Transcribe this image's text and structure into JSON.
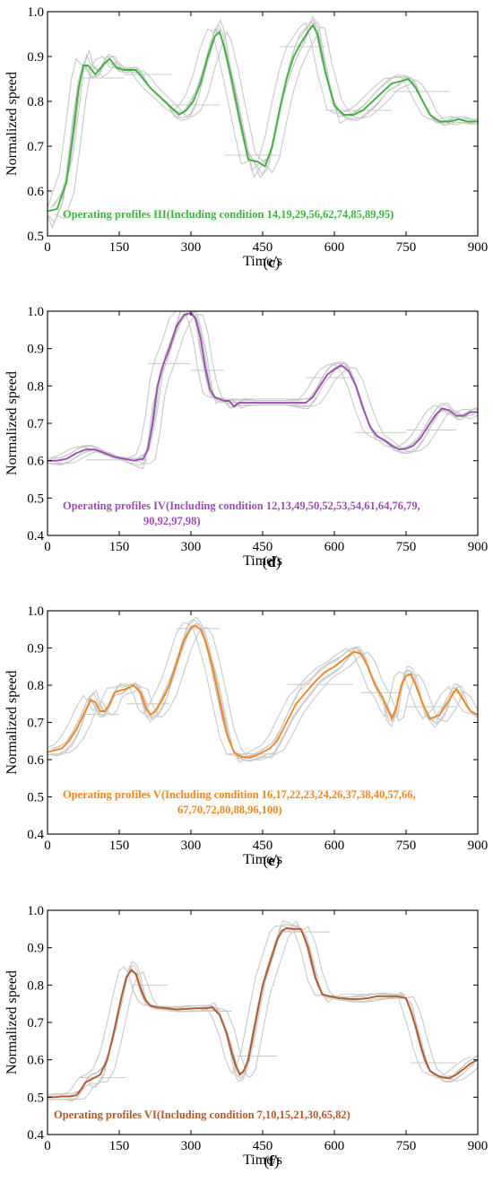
{
  "figure": {
    "panels": [
      {
        "id": "c",
        "letter": "(c)",
        "letter_bold": "c",
        "ylabel": "Normalized speed",
        "xlabel": "Time/s",
        "legend": [
          "Operating profiles III(Including condition 14,19,29,56,62,74,85,89,95)"
        ],
        "color": "#3cb43c"
      },
      {
        "id": "d",
        "letter": "(d)",
        "letter_bold": "d",
        "ylabel": "Normalized speed",
        "xlabel": "Time/s",
        "legend": [
          "Operating profiles IV(Including condition 12,13,49,50,52,53,54,61,64,76,79,",
          "90,92,97,98)"
        ],
        "color": "#9b4fb0"
      },
      {
        "id": "e",
        "letter": "(e)",
        "letter_bold": "e",
        "ylabel": "Normalized speed",
        "xlabel": "Time/s",
        "legend": [
          "Operating profiles V(Including condition 16,17,22,23,24,26,37,38,40,57,66,",
          "67,70,72,80,88,96,100)"
        ],
        "color": "#f2851e"
      },
      {
        "id": "f",
        "letter": "(f)",
        "letter_bold": "f",
        "ylabel": "Normalized speed",
        "xlabel": "Time/s",
        "legend": [
          "Operating profiles VI(Including condition 7,10,15,21,30,65,82)"
        ],
        "color": "#b5582a"
      }
    ]
  },
  "chart_data": [
    {
      "type": "line",
      "ylabel": "Normalized speed",
      "xlabel": "Time/s",
      "xlim": [
        0,
        900
      ],
      "ylim": [
        0.5,
        1.0
      ],
      "xticks": [
        "0",
        "150",
        "300",
        "450",
        "600",
        "750",
        "900"
      ],
      "yticks": [
        "0.5",
        "0.6",
        "0.7",
        "0.8",
        "0.9",
        "1.0"
      ],
      "legend": "Operating profiles III(Including condition 14,19,29,56,62,74,85,89,95)",
      "series": [
        {
          "name": "Operating profiles III",
          "color": "#3cb43c",
          "x": [
            0,
            20,
            40,
            55,
            65,
            75,
            85,
            100,
            115,
            130,
            145,
            160,
            175,
            185,
            200,
            215,
            230,
            245,
            260,
            275,
            290,
            305,
            320,
            335,
            350,
            360,
            370,
            385,
            400,
            420,
            440,
            455,
            470,
            485,
            500,
            515,
            530,
            545,
            555,
            565,
            580,
            600,
            620,
            640,
            660,
            680,
            700,
            720,
            740,
            755,
            770,
            785,
            800,
            820,
            840,
            860,
            880,
            900
          ],
          "y": [
            0.555,
            0.56,
            0.62,
            0.74,
            0.83,
            0.88,
            0.88,
            0.86,
            0.88,
            0.895,
            0.875,
            0.87,
            0.87,
            0.87,
            0.85,
            0.83,
            0.815,
            0.8,
            0.785,
            0.77,
            0.78,
            0.8,
            0.84,
            0.9,
            0.945,
            0.955,
            0.92,
            0.85,
            0.77,
            0.67,
            0.665,
            0.655,
            0.7,
            0.78,
            0.85,
            0.9,
            0.93,
            0.955,
            0.97,
            0.95,
            0.87,
            0.79,
            0.77,
            0.77,
            0.78,
            0.8,
            0.82,
            0.84,
            0.845,
            0.85,
            0.83,
            0.8,
            0.77,
            0.755,
            0.755,
            0.76,
            0.755,
            0.755
          ]
        }
      ]
    },
    {
      "type": "line",
      "ylabel": "Normalized speed",
      "xlabel": "Time/s",
      "xlim": [
        0,
        900
      ],
      "ylim": [
        0.4,
        1.0
      ],
      "xticks": [
        "0",
        "150",
        "300",
        "450",
        "600",
        "750",
        "900"
      ],
      "yticks": [
        "0.4",
        "0.5",
        "0.6",
        "0.7",
        "0.8",
        "0.9",
        "1.0"
      ],
      "legend": "Operating profiles IV(Including condition 12,13,49,50,52,53,54,61,64,76,79, 90,92,97,98)",
      "series": [
        {
          "name": "Operating profiles IV",
          "color": "#9b4fb0",
          "x": [
            0,
            20,
            40,
            60,
            80,
            100,
            120,
            140,
            160,
            180,
            200,
            210,
            220,
            230,
            240,
            255,
            270,
            285,
            300,
            310,
            320,
            330,
            340,
            350,
            360,
            370,
            380,
            390,
            400,
            420,
            450,
            480,
            510,
            540,
            555,
            570,
            585,
            600,
            615,
            630,
            645,
            660,
            675,
            690,
            705,
            720,
            735,
            750,
            765,
            780,
            795,
            810,
            825,
            840,
            855,
            870,
            885,
            900
          ],
          "y": [
            0.6,
            0.6,
            0.605,
            0.62,
            0.63,
            0.63,
            0.62,
            0.61,
            0.605,
            0.6,
            0.605,
            0.63,
            0.7,
            0.8,
            0.85,
            0.9,
            0.96,
            0.99,
            0.995,
            0.98,
            0.93,
            0.85,
            0.79,
            0.77,
            0.765,
            0.76,
            0.76,
            0.745,
            0.755,
            0.755,
            0.755,
            0.755,
            0.755,
            0.755,
            0.77,
            0.8,
            0.83,
            0.845,
            0.855,
            0.84,
            0.8,
            0.74,
            0.69,
            0.665,
            0.655,
            0.64,
            0.63,
            0.632,
            0.64,
            0.66,
            0.69,
            0.72,
            0.74,
            0.735,
            0.72,
            0.72,
            0.73,
            0.73
          ]
        }
      ]
    },
    {
      "type": "line",
      "ylabel": "Normalized speed",
      "xlabel": "Time/s",
      "xlim": [
        0,
        900
      ],
      "ylim": [
        0.4,
        1.0
      ],
      "xticks": [
        "0",
        "150",
        "300",
        "450",
        "600",
        "750",
        "900"
      ],
      "yticks": [
        "0.4",
        "0.5",
        "0.6",
        "0.7",
        "0.8",
        "0.9",
        "1.0"
      ],
      "legend": "Operating profiles V(Including condition 16,17,22,23,24,26,37,38,40,57,66, 67,70,72,80,88,96,100)",
      "series": [
        {
          "name": "Operating profiles V",
          "color": "#f2851e",
          "x": [
            0,
            15,
            30,
            45,
            60,
            75,
            90,
            100,
            110,
            120,
            130,
            140,
            150,
            165,
            180,
            195,
            205,
            215,
            225,
            240,
            255,
            270,
            285,
            300,
            310,
            320,
            330,
            345,
            360,
            375,
            390,
            405,
            420,
            435,
            450,
            465,
            480,
            500,
            520,
            540,
            560,
            580,
            600,
            620,
            640,
            655,
            670,
            685,
            700,
            710,
            720,
            730,
            740,
            750,
            760,
            770,
            785,
            800,
            820,
            840,
            855,
            870,
            885,
            900
          ],
          "y": [
            0.62,
            0.625,
            0.63,
            0.65,
            0.68,
            0.72,
            0.76,
            0.755,
            0.73,
            0.73,
            0.75,
            0.78,
            0.785,
            0.79,
            0.8,
            0.78,
            0.74,
            0.72,
            0.73,
            0.76,
            0.8,
            0.86,
            0.92,
            0.955,
            0.96,
            0.95,
            0.92,
            0.85,
            0.76,
            0.67,
            0.62,
            0.608,
            0.605,
            0.61,
            0.62,
            0.63,
            0.65,
            0.7,
            0.75,
            0.78,
            0.81,
            0.835,
            0.85,
            0.87,
            0.89,
            0.885,
            0.85,
            0.8,
            0.77,
            0.74,
            0.71,
            0.74,
            0.8,
            0.825,
            0.83,
            0.8,
            0.75,
            0.71,
            0.72,
            0.76,
            0.79,
            0.76,
            0.73,
            0.72
          ]
        }
      ]
    },
    {
      "type": "line",
      "ylabel": "Normalized speed",
      "xlabel": "Time/s",
      "xlim": [
        0,
        900
      ],
      "ylim": [
        0.4,
        1.0
      ],
      "xticks": [
        "0",
        "150",
        "300",
        "450",
        "600",
        "750",
        "900"
      ],
      "yticks": [
        "0.4",
        "0.5",
        "0.6",
        "0.7",
        "0.8",
        "0.9",
        "1.0"
      ],
      "legend": "Operating profiles VI(Including condition 7,10,15,21,30,65,82)",
      "series": [
        {
          "name": "Operating profiles VI",
          "color": "#b5582a",
          "x": [
            0,
            15,
            30,
            45,
            60,
            70,
            80,
            95,
            110,
            125,
            140,
            155,
            165,
            175,
            180,
            185,
            195,
            205,
            215,
            230,
            250,
            270,
            290,
            310,
            330,
            345,
            360,
            375,
            385,
            395,
            402,
            410,
            420,
            435,
            450,
            465,
            480,
            490,
            500,
            515,
            530,
            545,
            560,
            575,
            590,
            610,
            630,
            650,
            670,
            690,
            710,
            730,
            750,
            760,
            770,
            780,
            790,
            800,
            820,
            840,
            855,
            870,
            885,
            900
          ],
          "y": [
            0.5,
            0.5,
            0.502,
            0.502,
            0.505,
            0.52,
            0.54,
            0.55,
            0.56,
            0.6,
            0.68,
            0.77,
            0.82,
            0.84,
            0.835,
            0.83,
            0.79,
            0.76,
            0.745,
            0.74,
            0.738,
            0.735,
            0.736,
            0.738,
            0.738,
            0.74,
            0.72,
            0.67,
            0.62,
            0.58,
            0.56,
            0.57,
            0.6,
            0.7,
            0.8,
            0.86,
            0.92,
            0.945,
            0.952,
            0.95,
            0.95,
            0.9,
            0.82,
            0.775,
            0.77,
            0.765,
            0.763,
            0.762,
            0.765,
            0.77,
            0.77,
            0.77,
            0.765,
            0.73,
            0.69,
            0.64,
            0.6,
            0.57,
            0.555,
            0.55,
            0.56,
            0.575,
            0.59,
            0.6
          ]
        }
      ]
    }
  ]
}
